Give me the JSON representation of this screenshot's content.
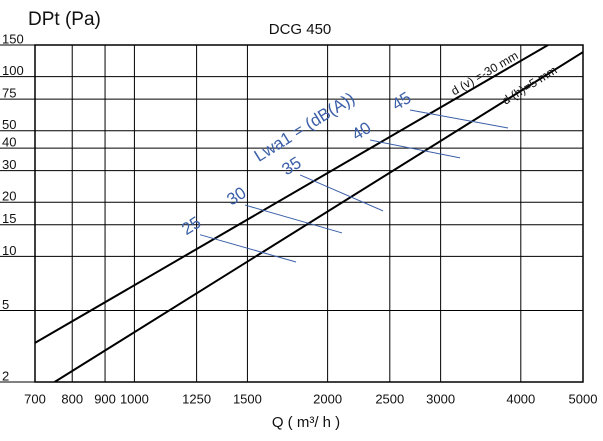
{
  "chart_data": {
    "type": "line",
    "title": "DCG 450",
    "y_label": "DPt (Pa)",
    "x_label": "Q ( m³/ h )",
    "log_x": true,
    "log_y": true,
    "grid": true,
    "xlim": [
      700,
      5000
    ],
    "xticks": [
      700,
      800,
      900,
      1000,
      1250,
      1500,
      2000,
      2500,
      3000,
      4000,
      5000
    ],
    "ylim": [
      2,
      150
    ],
    "yticks": [
      2,
      5,
      10,
      15,
      20,
      30,
      40,
      50,
      75,
      100,
      150
    ],
    "series": [
      {
        "name": "d (v) =-30 mm",
        "color": "#000000",
        "x": [
          700,
          4411
        ],
        "values": [
          3.3,
          150
        ]
      },
      {
        "name": "d (h)=5 mm",
        "color": "#000000",
        "x": [
          751,
          5000
        ],
        "values": [
          2,
          137
        ]
      }
    ],
    "sound_label": "Lwa1 = (dB(A))",
    "sound_color": "#3b5fa8",
    "sound_lines": [
      {
        "label": "25",
        "x": [
          1265,
          1786
        ],
        "values": [
          13.2,
          9.3
        ]
      },
      {
        "label": "30",
        "x": [
          1487,
          2106
        ],
        "values": [
          19.3,
          13.5
        ]
      },
      {
        "label": "35",
        "x": [
          1812,
          2440
        ],
        "values": [
          28.4,
          17.9
        ]
      },
      {
        "label": "40",
        "x": [
          2329,
          3217
        ],
        "values": [
          44.4,
          35.3
        ]
      },
      {
        "label": "45",
        "x": [
          2688,
          3821
        ],
        "values": [
          65.2,
          51.8
        ]
      }
    ]
  }
}
